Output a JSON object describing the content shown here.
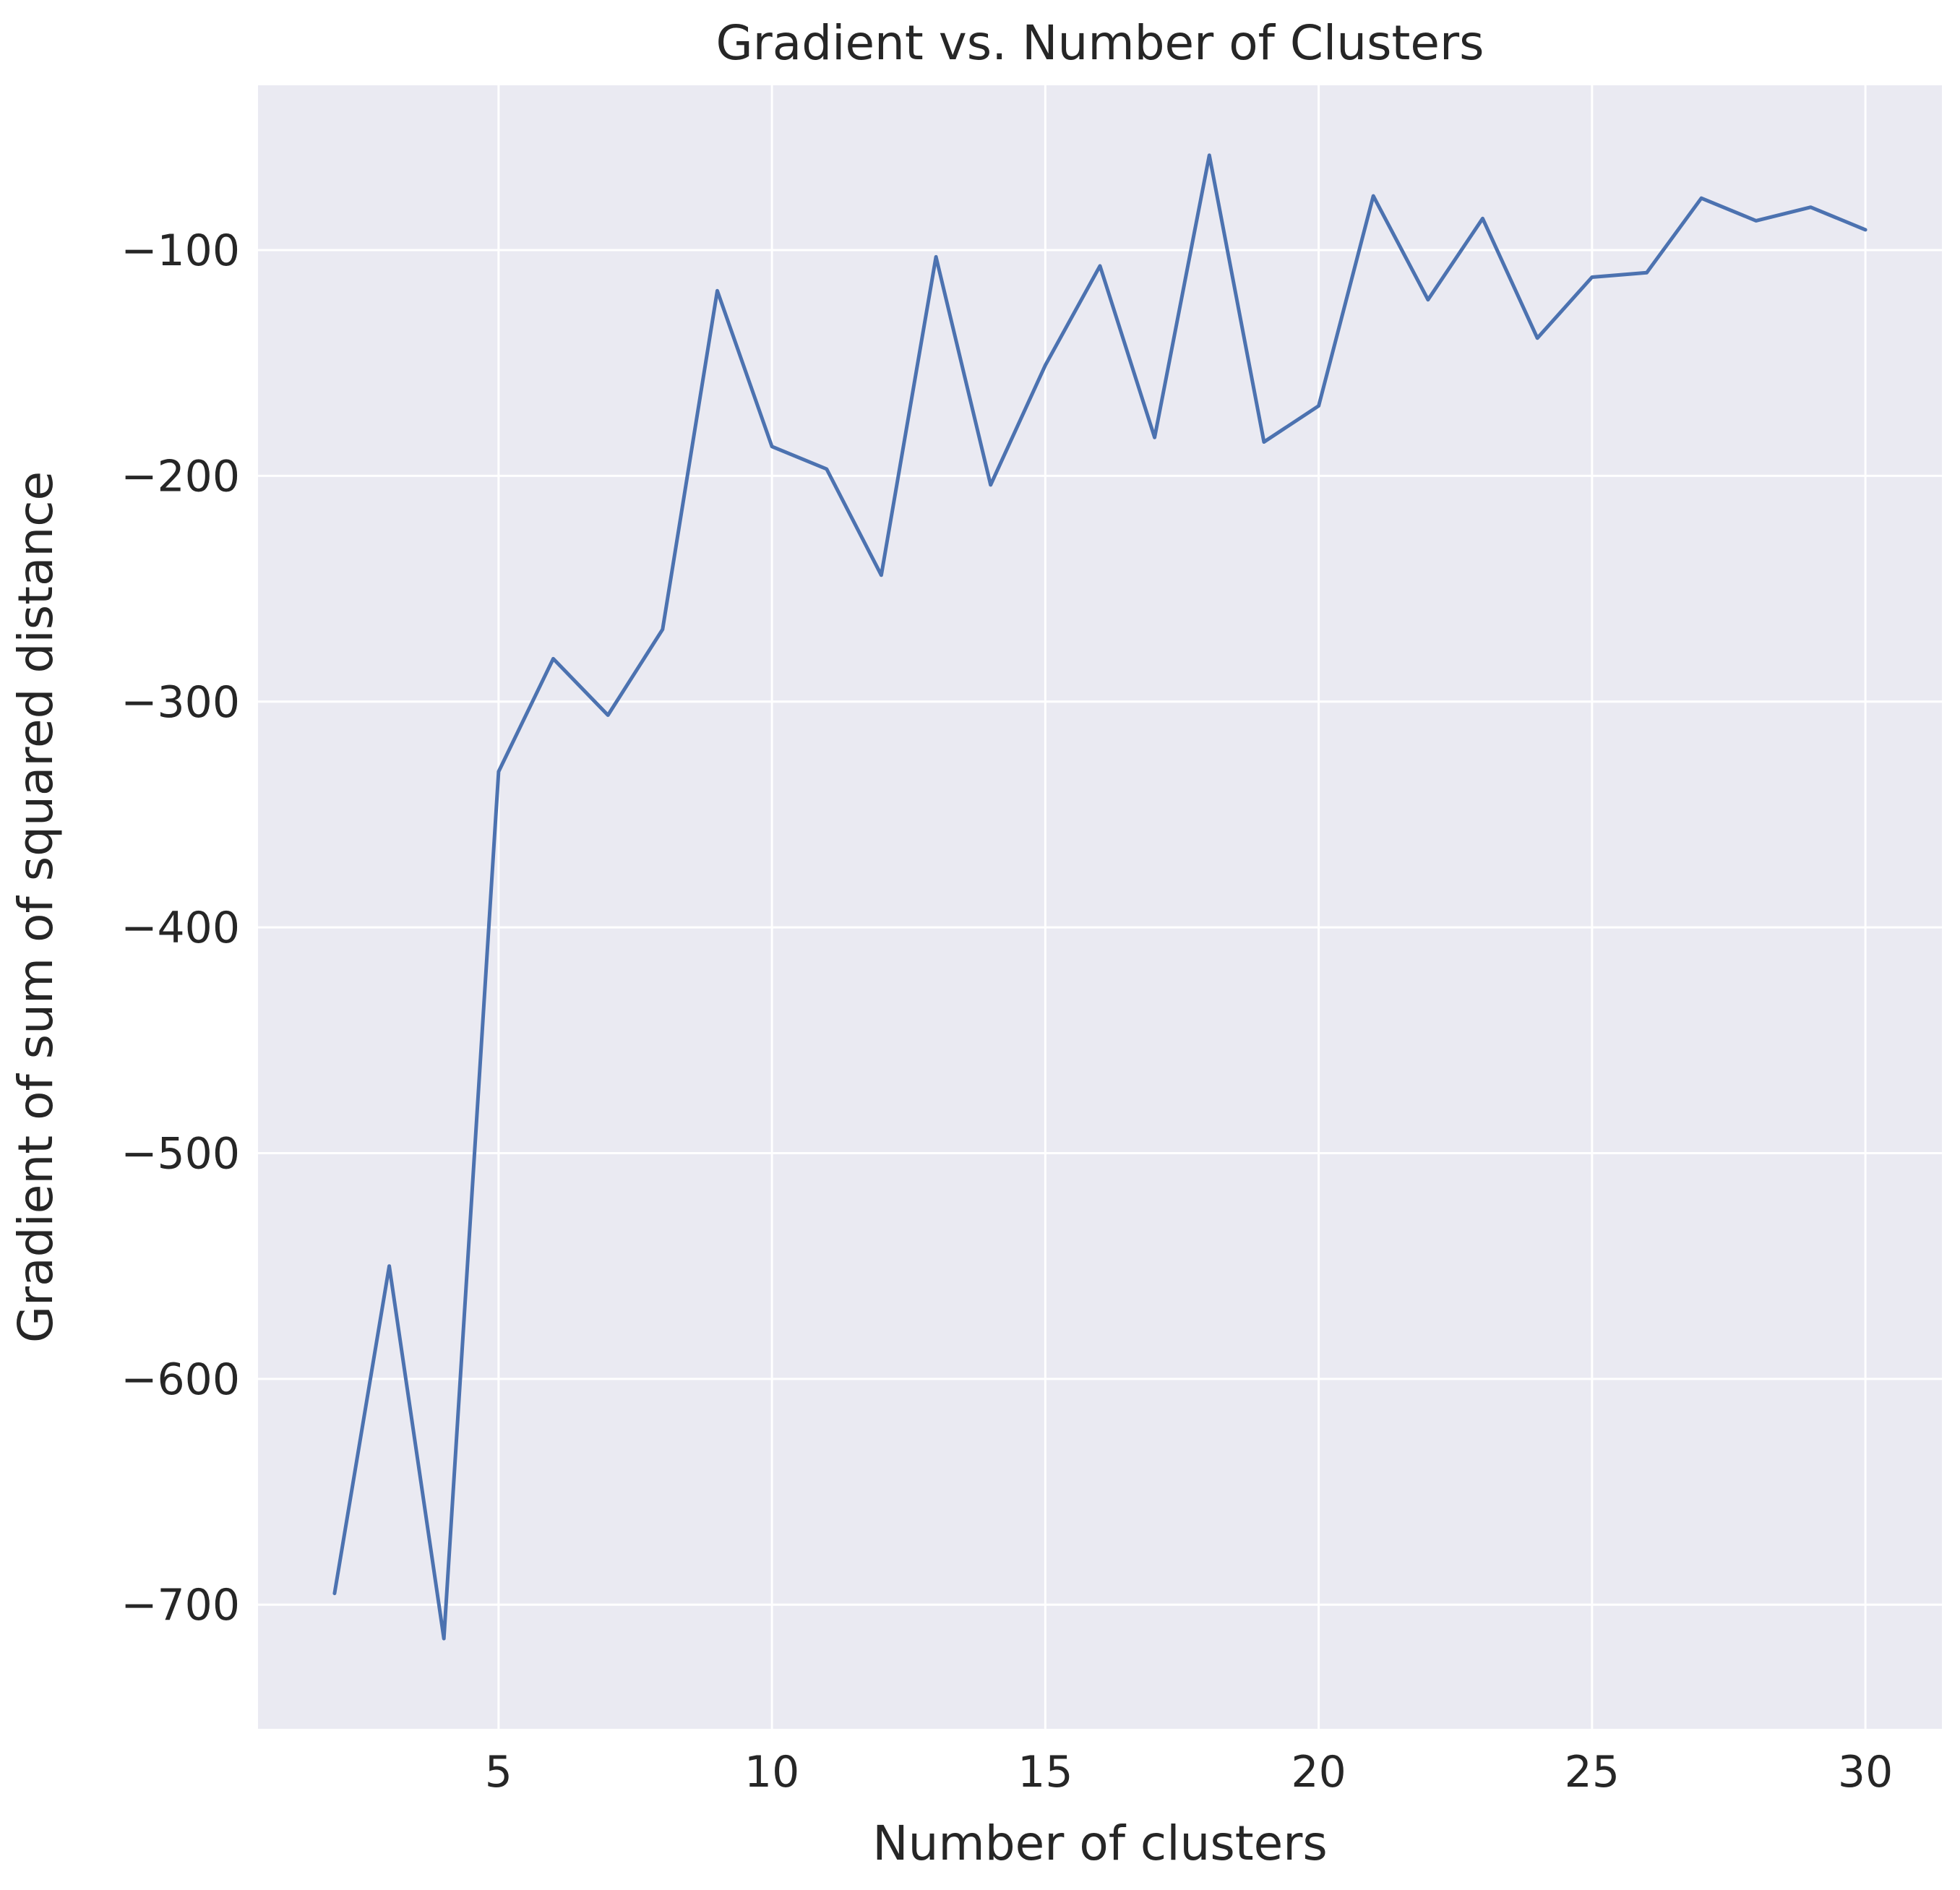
{
  "chart_data": {
    "type": "line",
    "title": "Gradient vs. Number of Clusters",
    "xlabel": "Number of clusters",
    "ylabel": "Gradient of sum of squared distance",
    "xlim": [
      0.6,
      31.4
    ],
    "ylim": [
      -755,
      -27
    ],
    "xticks": [
      5,
      10,
      15,
      20,
      25,
      30
    ],
    "xtick_labels": [
      "5",
      "10",
      "15",
      "20",
      "25",
      "30"
    ],
    "yticks": [
      -100,
      -200,
      -300,
      -400,
      -500,
      -600,
      -700
    ],
    "ytick_labels": [
      "−100",
      "−200",
      "−300",
      "−400",
      "−500",
      "−600",
      "−700"
    ],
    "grid": true,
    "colors": {
      "line": "#4C72B0",
      "background": "#EAEAF2",
      "grid": "#FFFFFF"
    },
    "series": [
      {
        "x": [
          2,
          3,
          4,
          5,
          6,
          7,
          8,
          9,
          10,
          11,
          12,
          13,
          14,
          15,
          16,
          17,
          18,
          19,
          20,
          21,
          22,
          23,
          24,
          25,
          26,
          27,
          28,
          29,
          30
        ],
        "values": [
          -695,
          -550,
          -715,
          -331,
          -281,
          -306,
          -268,
          -118,
          -187,
          -197,
          -244,
          -103,
          -204,
          -151,
          -107,
          -183,
          -58,
          -185,
          -169,
          -76,
          -122,
          -86,
          -139,
          -112,
          -110,
          -77,
          -87,
          -81,
          -91
        ]
      }
    ]
  }
}
